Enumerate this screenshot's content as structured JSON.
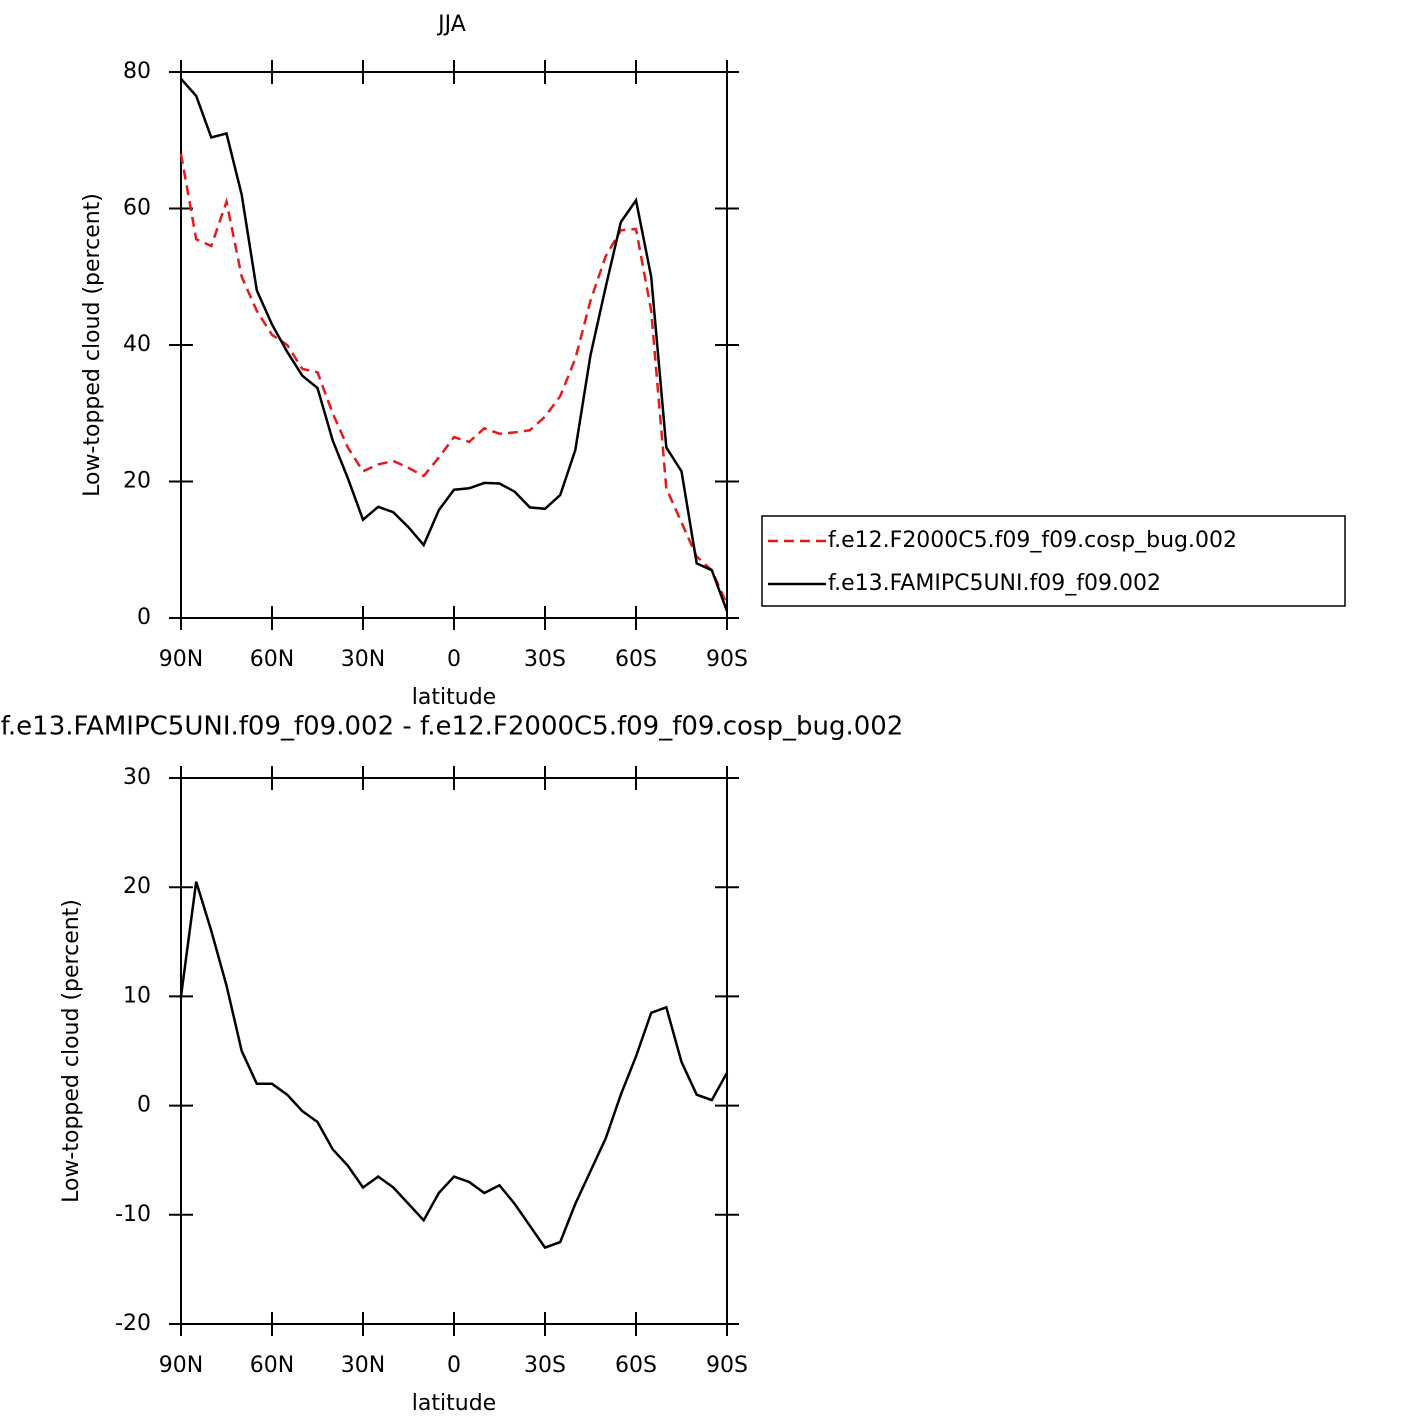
{
  "chart_data": [
    {
      "type": "line",
      "title": "JJA",
      "xlabel": "latitude",
      "ylabel": "Low-topped cloud (percent)",
      "x": [
        90,
        85,
        80,
        75,
        70,
        65,
        60,
        55,
        50,
        45,
        40,
        35,
        30,
        25,
        20,
        15,
        10,
        5,
        0,
        -5,
        -10,
        -15,
        -20,
        -25,
        -30,
        -35,
        -40,
        -45,
        -50,
        -55,
        -60,
        -65,
        -70,
        -75,
        -80,
        -85,
        -90
      ],
      "series": [
        {
          "name": "f.e12.F2000C5.f09_f09.cosp_bug.002",
          "color": "#e41a1c",
          "linestyle": "dashed",
          "values": [
            68,
            55.5,
            54.5,
            61,
            50,
            45,
            41.5,
            40,
            36.5,
            36,
            30,
            25,
            21.5,
            22.5,
            23,
            22,
            20.8,
            23.5,
            26.5,
            25.8,
            27.8,
            27,
            27.2,
            27.5,
            29.5,
            32.5,
            38,
            46.5,
            53,
            56.8,
            57,
            45,
            19,
            14,
            9,
            7,
            2
          ]
        },
        {
          "name": "f.e13.FAMIPC5UNI.f09_f09.002",
          "color": "#000000",
          "linestyle": "solid",
          "values": [
            79,
            76.5,
            70.4,
            71,
            62,
            48,
            43,
            39,
            35.5,
            33.7,
            26,
            20.5,
            14.4,
            16.3,
            15.5,
            13.3,
            10.7,
            15.8,
            18.8,
            19,
            19.8,
            19.7,
            18.5,
            16.2,
            16,
            18,
            24.6,
            38.5,
            48.5,
            58,
            61.2,
            50,
            25,
            21.5,
            8,
            7,
            1
          ]
        }
      ],
      "xlim": [
        90,
        -90
      ],
      "xticks": [
        {
          "value": 90,
          "label": "90N"
        },
        {
          "value": 60,
          "label": "60N"
        },
        {
          "value": 30,
          "label": "30N"
        },
        0,
        {
          "value": -30,
          "label": "30S"
        },
        {
          "value": -60,
          "label": "60S"
        },
        {
          "value": -90,
          "label": "90S"
        }
      ],
      "ylim": [
        0,
        80
      ],
      "yticks": [
        0,
        20,
        40,
        60,
        80
      ],
      "legend": "right"
    },
    {
      "type": "line",
      "title": "f.e13.FAMIPC5UNI.f09_f09.002 - f.e12.F2000C5.f09_f09.cosp_bug.002",
      "xlabel": "latitude",
      "ylabel": "Low-topped cloud (percent)",
      "x": [
        90,
        85,
        80,
        75,
        70,
        65,
        60,
        55,
        50,
        45,
        40,
        35,
        30,
        25,
        20,
        15,
        10,
        5,
        0,
        -5,
        -10,
        -15,
        -20,
        -25,
        -30,
        -35,
        -40,
        -45,
        -50,
        -55,
        -60,
        -65,
        -70,
        -75,
        -80,
        -85,
        -90
      ],
      "series": [
        {
          "color": "#000000",
          "linestyle": "solid",
          "values": [
            10,
            20.5,
            16,
            11,
            5,
            2,
            2,
            1,
            -0.5,
            -1.5,
            -4,
            -5.5,
            -7.5,
            -6.5,
            -7.5,
            -9,
            -10.5,
            -8,
            -6.5,
            -7,
            -8,
            -7.3,
            -9,
            -11,
            -13,
            -12.5,
            -9,
            -6,
            -3,
            1,
            4.5,
            8.5,
            9,
            4,
            1,
            0.5,
            3
          ]
        }
      ],
      "xlim": [
        90,
        -90
      ],
      "xticks": [
        {
          "value": 90,
          "label": "90N"
        },
        {
          "value": 60,
          "label": "60N"
        },
        {
          "value": 30,
          "label": "30N"
        },
        0,
        {
          "value": -30,
          "label": "30S"
        },
        {
          "value": -60,
          "label": "60S"
        },
        {
          "value": -90,
          "label": "90S"
        }
      ],
      "ylim": [
        -20,
        30
      ],
      "yticks": [
        -20,
        -10,
        0,
        10,
        20,
        30
      ]
    }
  ]
}
